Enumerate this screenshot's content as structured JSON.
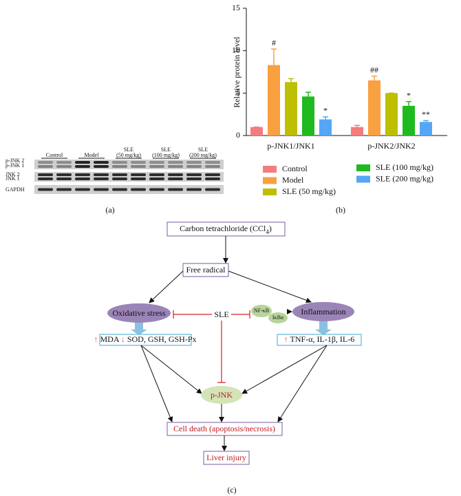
{
  "chart_data": {
    "type": "bar",
    "ylabel": "Relative protein level",
    "categories": [
      "p-JNK1/JNK1",
      "p-JNK2/JNK2"
    ],
    "series": [
      {
        "name": "Control",
        "color": "#f47c7c",
        "values": [
          1.0,
          1.0
        ],
        "errors": [
          0,
          0.2
        ],
        "annotations": [
          null,
          null
        ]
      },
      {
        "name": "Model",
        "color": "#f9a040",
        "values": [
          8.3,
          6.5
        ],
        "errors": [
          1.9,
          0.5
        ],
        "annotations": [
          "#",
          "##"
        ]
      },
      {
        "name": "SLE (50 mg/kg)",
        "color": "#bdbf00",
        "values": [
          6.3,
          5.0
        ],
        "errors": [
          0.4,
          0
        ],
        "annotations": [
          null,
          null
        ]
      },
      {
        "name": "SLE (100 mg/kg)",
        "color": "#1fba1f",
        "values": [
          4.6,
          3.5
        ],
        "errors": [
          0.5,
          0.5
        ],
        "annotations": [
          null,
          "*"
        ]
      },
      {
        "name": "SLE (200 mg/kg)",
        "color": "#55a7f5",
        "values": [
          1.9,
          1.6
        ],
        "errors": [
          0.3,
          0.15
        ],
        "annotations": [
          "*",
          "**"
        ]
      }
    ],
    "ylim": [
      0,
      15
    ],
    "yticks": [
      0,
      5,
      10,
      15
    ],
    "panel": "(b)"
  },
  "blot": {
    "panel": "(a)",
    "groups": [
      [
        "Control"
      ],
      [
        "Model"
      ],
      [
        "SLE",
        "(50 mg/kg)"
      ],
      [
        "SLE",
        "(100 mg/kg)"
      ],
      [
        "SLE",
        "(200 mg/kg)"
      ]
    ],
    "rows": [
      "p-JNK 2",
      "p-JNK 1",
      "JNK 2",
      "JNK 1",
      "GAPDH"
    ]
  },
  "diagram": {
    "panel": "(c)",
    "source": {
      "label": "Carbon tetrachloride (CCl",
      "subscript": "4",
      "suffix": ")"
    },
    "radical": "Free radical",
    "oxidative": "Oxidative stress",
    "inflammation": "Inflammation",
    "drug": "SLE",
    "nfkb": "NF-κB",
    "ikba": "IκBα",
    "markers_left": [
      "↑",
      "MDA",
      "↓",
      "SOD, GSH, GSH-Px"
    ],
    "markers_right": [
      "↑",
      "TNF-α, IL-1β, IL-6"
    ],
    "pjnk": "p-JNK",
    "death": "Cell death (apoptosis/necrosis)",
    "injury": "Liver injury"
  }
}
